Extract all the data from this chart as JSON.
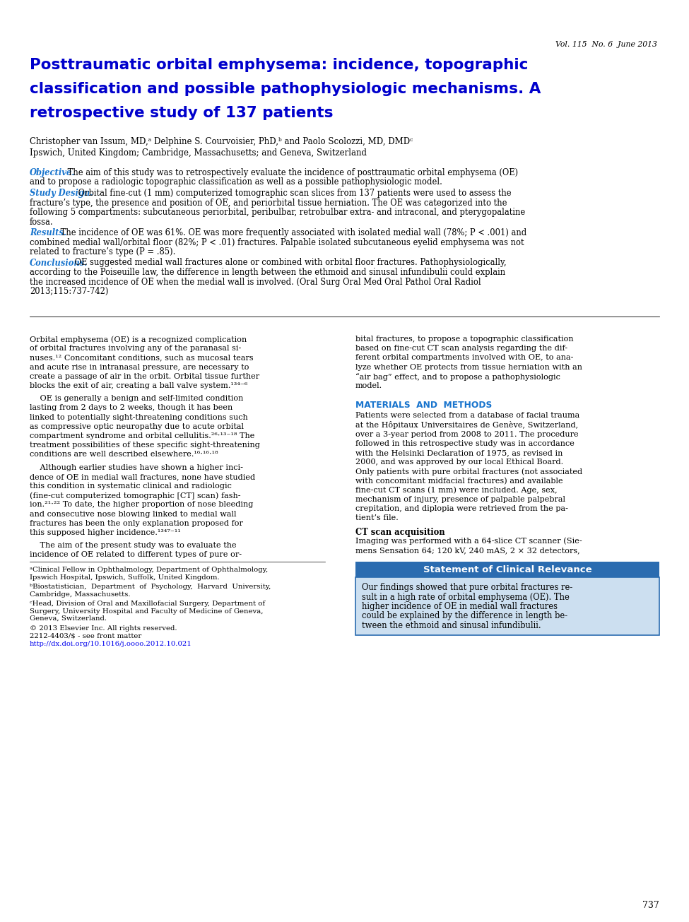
{
  "vol_line": "Vol. 115  No. 6  June 2013",
  "title_line1": "Posttraumatic orbital emphysema: incidence, topographic",
  "title_line2": "classification and possible pathophysiologic mechanisms. A",
  "title_line3": "retrospective study of 137 patients",
  "authors": "Christopher van Issum, MD,ᵃ Delphine S. Courvoisier, PhD,ᵇ and Paolo Scolozzi, MD, DMDᶜ",
  "affiliation": "Ipswich, United Kingdom; Cambridge, Massachusetts; and Geneva, Switzerland",
  "obj_label": "Objective.",
  "obj_text": " The aim of this study was to retrospectively evaluate the incidence of posttraumatic orbital emphysema (OE) and to propose a radiologic topographic classification as well as a possible pathophysiologic model.",
  "sd_label": "Study Design.",
  "sd_text": " Orbital fine-cut (1 mm) computerized tomographic scan slices from 137 patients were used to assess the fracture’s type, the presence and position of OE, and periorbital tissue herniation. The OE was categorized into the following 5 compartments: subcutaneous periorbital, peribulbar, retrobulbar extra- and intraconal, and pterygopalatine fossa.",
  "res_label": "Results.",
  "res_text": " The incidence of OE was 61%. OE was more frequently associated with isolated medial wall (78%; P < .001) and combined medial wall/orbital floor (82%; P < .01) fractures. Palpable isolated subcutaneous eyelid emphysema was not related to fracture’s type (P = .85).",
  "conc_label": "Conclusions.",
  "conc_text": " OE suggested medial wall fractures alone or combined with orbital floor fractures. Pathophysiologically, according to the Poiseuille law, the difference in length between the ethmoid and sinusal infundibulii could explain the increased incidence of OE when the medial wall is involved. (Oral Surg Oral Med Oral Pathol Oral Radiol 2013;115:737-742)",
  "c1p1_lines": [
    "Orbital emphysema (OE) is a recognized complication",
    "of orbital fractures involving any of the paranasal si-",
    "nuses.¹² Concomitant conditions, such as mucosal tears",
    "and acute rise in intranasal pressure, are necessary to",
    "create a passage of air in the orbit. Orbital tissue further",
    "blocks the exit of air, creating a ball valve system.¹³⁴⁻⁶"
  ],
  "c1p2_lines": [
    "    OE is generally a benign and self-limited condition",
    "lasting from 2 days to 2 weeks, though it has been",
    "linked to potentially sight-threatening conditions such",
    "as compressive optic neuropathy due to acute orbital",
    "compartment syndrome and orbital cellulitis.²⁶·¹³⁻¹⁸ The",
    "treatment possibilities of these specific sight-threatening",
    "conditions are well described elsewhere.¹⁶·¹⁶·¹⁸"
  ],
  "c1p3_lines": [
    "    Although earlier studies have shown a higher inci-",
    "dence of OE in medial wall fractures, none have studied",
    "this condition in systematic clinical and radiologic",
    "(fine-cut computerized tomographic [CT] scan) fash-",
    "ion.²¹·²² To date, the higher proportion of nose bleeding",
    "and consecutive nose blowing linked to medial wall",
    "fractures has been the only explanation proposed for",
    "this supposed higher incidence.¹³⁴⁷⁻¹¹"
  ],
  "c1p4_lines": [
    "    The aim of the present study was to evaluate the",
    "incidence of OE related to different types of pure or-"
  ],
  "c2p1_lines": [
    "bital fractures, to propose a topographic classification",
    "based on fine-cut CT scan analysis regarding the dif-",
    "ferent orbital compartments involved with OE, to ana-",
    "lyze whether OE protects from tissue herniation with an",
    "“air bag” effect, and to propose a pathophysiologic",
    "model."
  ],
  "mm_header": "MATERIALS  AND  METHODS",
  "c2p2_lines": [
    "Patients were selected from a database of facial trauma",
    "at the Hôpitaux Universitaires de Genève, Switzerland,",
    "over a 3-year period from 2008 to 2011. The procedure",
    "followed in this retrospective study was in accordance",
    "with the Helsinki Declaration of 1975, as revised in",
    "2000, and was approved by our local Ethical Board.",
    "Only patients with pure orbital fractures (not associated",
    "with concomitant midfacial fractures) and available",
    "fine-cut CT scans (1 mm) were included. Age, sex,",
    "mechanism of injury, presence of palpable palpebral",
    "crepitation, and diplopia were retrieved from the pa-",
    "tient’s file."
  ],
  "ct_header": "CT scan acquisition",
  "ct_lines": [
    "Imaging was performed with a 64-slice CT scanner (Sie-",
    "mens Sensation 64; 120 kV, 240 mAS, 2 × 32 detectors,"
  ],
  "box_title": "Statement of Clinical Relevance",
  "box_lines": [
    "Our findings showed that pure orbital fractures re-",
    "sult in a high rate of orbital emphysema (OE). The",
    "higher incidence of OE in medial wall fractures",
    "could be explained by the difference in length be-",
    "tween the ethmoid and sinusal infundibulii."
  ],
  "fn1_lines": [
    "ᵃClinical Fellow in Ophthalmology, Department of Ophthalmology,",
    "Ipswich Hospital, Ipswich, Suffolk, United Kingdom."
  ],
  "fn2_lines": [
    "ᵇBiostatistician,  Department  of  Psychology,  Harvard  University,",
    "Cambridge, Massachusetts."
  ],
  "fn3_lines": [
    "ᶜHead, Division of Oral and Maxillofacial Surgery, Department of",
    "Surgery, University Hospital and Faculty of Medicine of Geneva,",
    "Geneva, Switzerland."
  ],
  "fn4": "© 2013 Elsevier Inc. All rights reserved.",
  "fn5": "2212-4403/$ - see front matter",
  "fn6": "http://dx.doi.org/10.1016/j.oooo.2012.10.021",
  "page_number": "737",
  "title_color": "#0000CC",
  "blue_label_color": "#1874CD",
  "mm_color": "#1874CD",
  "link_color": "#0000EE",
  "box_header_bg": "#2B6CB0",
  "box_bg": "#CCDFF0",
  "box_border": "#2B6CB0"
}
